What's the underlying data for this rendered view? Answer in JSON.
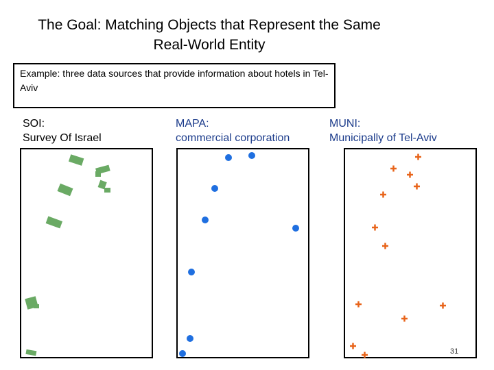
{
  "slide": {
    "title_line1": "The Goal: Matching Objects that Represent the Same",
    "title_line2": "Real-World Entity",
    "example_text": "Example: three data sources that provide information about hotels in Tel-Aviv",
    "page_number": "31"
  },
  "sources": {
    "soi": {
      "name": "SOI:",
      "description": "Survey Of Israel",
      "marker": "green-rectangle"
    },
    "mapa": {
      "name": "MAPA:",
      "description": "commercial corporation",
      "marker": "blue-dot"
    },
    "muni": {
      "name": "MUNI:",
      "description": "Municipally of Tel-Aviv",
      "marker": "orange-cross"
    }
  },
  "colors": {
    "soi": "#6aaa64",
    "mapa": "#1f6fe0",
    "muni": "#e8641a"
  }
}
